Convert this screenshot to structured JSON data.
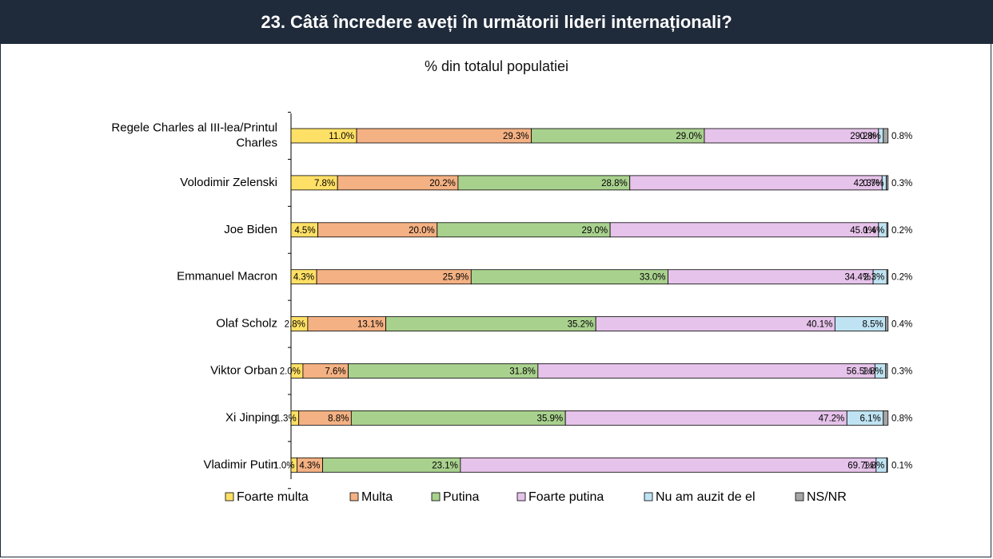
{
  "header": {
    "title": "23. Câtă încredere aveți în următorii lideri internaționali?"
  },
  "colors": {
    "Foarte multa": "#ffe066",
    "Multa": "#f4b183",
    "Putina": "#a9d18e",
    "Foarte putina": "#e6c3ea",
    "Nu am auzit de el": "#bfe3f2",
    "NS/NR": "#a6a6a6"
  },
  "chart_data": {
    "type": "bar",
    "orientation": "horizontal",
    "stacked": true,
    "subtitle": "% din totalul populatiei",
    "categories": [
      "Regele Charles al III-lea/Printul Charles",
      "Volodimir Zelenski",
      "Joe Biden",
      "Emmanuel Macron",
      "Olaf Scholz",
      "Viktor Orban",
      "Xi Jinping",
      "Vladimir Putin"
    ],
    "category_lines": [
      [
        "Regele Charles al III-lea/Printul",
        "Charles"
      ],
      [
        "Volodimir Zelenski"
      ],
      [
        "Joe Biden"
      ],
      [
        "Emmanuel Macron"
      ],
      [
        "Olaf Scholz"
      ],
      [
        "Viktor Orban"
      ],
      [
        "Xi Jinping"
      ],
      [
        "Vladimir Putin"
      ]
    ],
    "series": [
      {
        "name": "Foarte multa",
        "values": [
          11.0,
          7.8,
          4.5,
          4.3,
          2.8,
          2.0,
          1.3,
          1.0
        ]
      },
      {
        "name": "Multa",
        "values": [
          29.3,
          20.2,
          20.0,
          25.9,
          13.1,
          7.6,
          8.8,
          4.3
        ]
      },
      {
        "name": "Putina",
        "values": [
          29.0,
          28.8,
          29.0,
          33.0,
          35.2,
          31.8,
          35.9,
          23.1
        ]
      },
      {
        "name": "Foarte putina",
        "values": [
          29.2,
          42.3,
          45.0,
          34.4,
          40.1,
          56.5,
          47.2,
          69.7
        ]
      },
      {
        "name": "Nu am auzit de el",
        "values": [
          0.8,
          0.7,
          1.4,
          2.3,
          8.5,
          1.8,
          6.1,
          1.8
        ]
      },
      {
        "name": "NS/NR",
        "values": [
          0.8,
          0.3,
          0.2,
          0.2,
          0.4,
          0.3,
          0.8,
          0.1
        ]
      }
    ],
    "value_unit": "%",
    "xlim": [
      0,
      100
    ],
    "grid": false,
    "legend": "bottom"
  }
}
